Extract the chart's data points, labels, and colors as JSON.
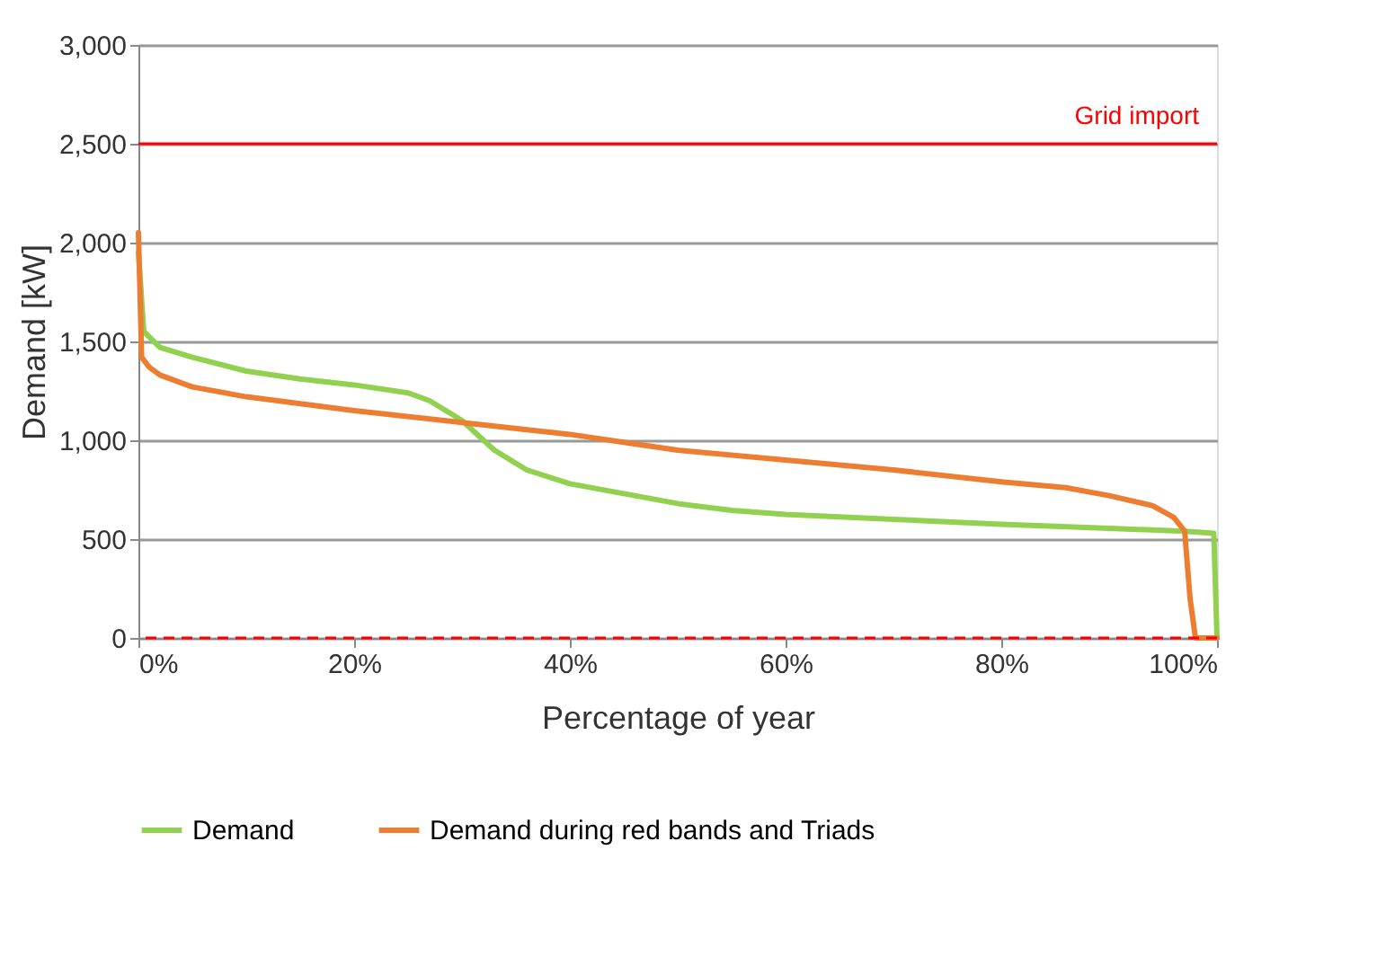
{
  "chart_data": {
    "type": "line",
    "xlabel": "Percentage of year",
    "ylabel": "Demand [kW]",
    "xlim": [
      0,
      100
    ],
    "ylim": [
      0,
      3000
    ],
    "xticks": [
      {
        "value": 0,
        "label": "0%"
      },
      {
        "value": 20,
        "label": "20%"
      },
      {
        "value": 40,
        "label": "40%"
      },
      {
        "value": 60,
        "label": "60%"
      },
      {
        "value": 80,
        "label": "80%"
      },
      {
        "value": 100,
        "label": "100%"
      }
    ],
    "yticks": [
      {
        "value": 0,
        "label": "0"
      },
      {
        "value": 500,
        "label": "500"
      },
      {
        "value": 1000,
        "label": "1,000"
      },
      {
        "value": 1500,
        "label": "1,500"
      },
      {
        "value": 2000,
        "label": "2,000"
      },
      {
        "value": 2500,
        "label": "2,500"
      },
      {
        "value": 3000,
        "label": "3,000"
      }
    ],
    "grid": "y",
    "legend": "bottom",
    "marker": "none",
    "line_style": "solid",
    "series": [
      {
        "name": "Demand",
        "color": "#92d050",
        "x": [
          0,
          0.5,
          2,
          5,
          10,
          15,
          20,
          25,
          27,
          30,
          33,
          36,
          40,
          45,
          50,
          55,
          60,
          70,
          80,
          90,
          97,
          99.7,
          100
        ],
        "values": [
          1950,
          1550,
          1470,
          1420,
          1350,
          1310,
          1280,
          1240,
          1200,
          1100,
          950,
          850,
          780,
          730,
          680,
          645,
          625,
          600,
          575,
          555,
          540,
          530,
          0
        ]
      },
      {
        "name": "Demand during red bands and Triads",
        "color": "#ed7d31",
        "x": [
          0,
          0.3,
          1,
          2,
          5,
          10,
          20,
          30,
          40,
          45,
          50,
          60,
          70,
          80,
          86,
          90,
          94,
          96,
          97,
          97.5,
          98,
          100
        ],
        "values": [
          2050,
          1420,
          1370,
          1330,
          1270,
          1220,
          1150,
          1090,
          1030,
          990,
          950,
          900,
          850,
          790,
          760,
          720,
          670,
          610,
          540,
          200,
          0,
          0
        ]
      }
    ],
    "ref_lines": [
      {
        "axis": "y",
        "value": 2500,
        "label": "Grid import",
        "color": "#ff0000",
        "line_style": "solid"
      },
      {
        "axis": "y",
        "value": 0,
        "label": null,
        "color": "#ff0000",
        "line_style": "dashed"
      }
    ]
  }
}
